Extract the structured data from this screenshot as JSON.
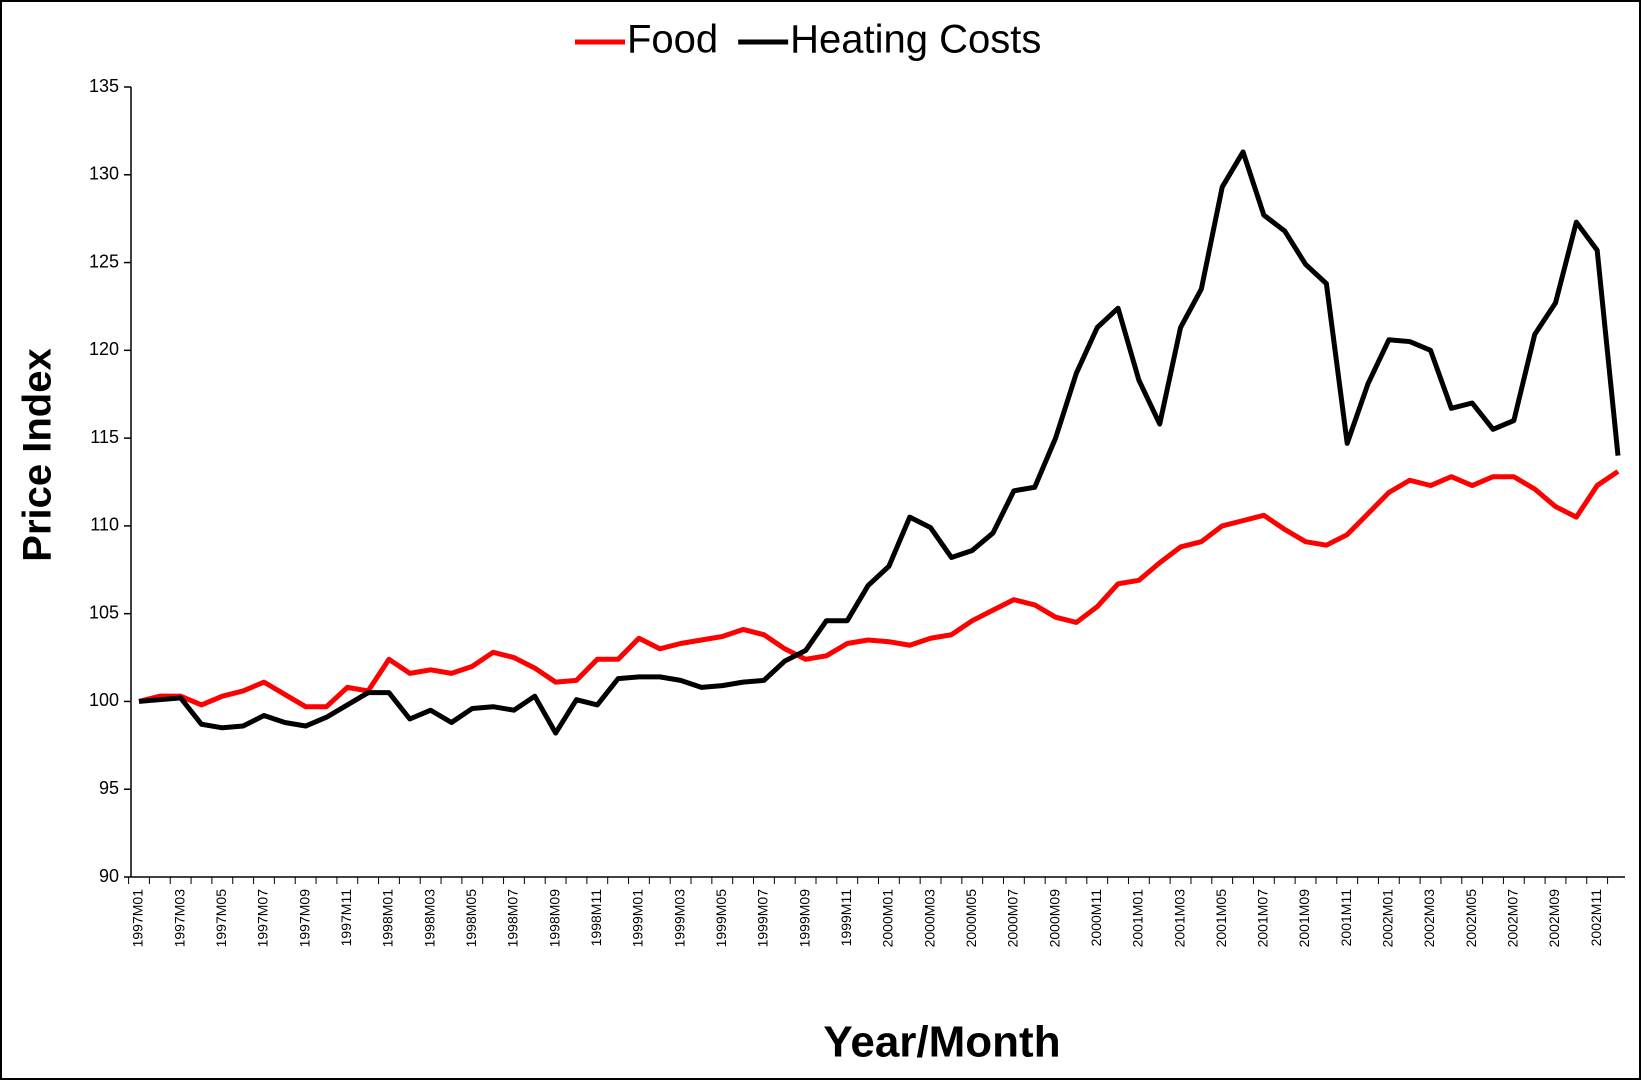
{
  "chart_data": {
    "type": "line",
    "legend": [
      "Food",
      "Heating Costs"
    ],
    "ylabel": "Price Index",
    "xlabel": "Year/Month",
    "categories": [
      "1997M01",
      null,
      "1997M03",
      null,
      "1997M05",
      null,
      "1997M07",
      null,
      "1997M09",
      null,
      "1997M11",
      null,
      "1998M01",
      null,
      "1998M03",
      null,
      "1998M05",
      null,
      "1998M07",
      null,
      "1998M09",
      null,
      "1998M11",
      null,
      "1999M01",
      null,
      "1999M03",
      null,
      "1999M05",
      null,
      "1999M07",
      null,
      "1999M09",
      null,
      "1999M11",
      null,
      "2000M01",
      null,
      "2000M03",
      null,
      "2000M05",
      null,
      "2000M07",
      null,
      "2000M09",
      null,
      "2000M11",
      null,
      "2001M01",
      null,
      "2001M03",
      null,
      "2001M05",
      null,
      "2001M07",
      null,
      "2001M09",
      null,
      "2001M11",
      null,
      "2002M01",
      null,
      "2002M03",
      null,
      "2002M05",
      null,
      "2002M07",
      null,
      "2002M09",
      null,
      "2002M11",
      null
    ],
    "series": [
      {
        "name": "Food",
        "color": "#ff0000",
        "values": [
          100.0,
          100.3,
          100.3,
          99.8,
          100.3,
          100.6,
          101.1,
          100.4,
          99.7,
          99.7,
          100.8,
          100.6,
          102.4,
          101.6,
          101.8,
          101.6,
          102.0,
          102.8,
          102.5,
          101.9,
          101.1,
          101.2,
          102.4,
          102.4,
          103.6,
          103.0,
          103.3,
          103.5,
          103.7,
          104.1,
          103.8,
          103.0,
          102.4,
          102.6,
          103.3,
          103.5,
          103.4,
          103.2,
          103.6,
          103.8,
          104.6,
          105.2,
          105.8,
          105.5,
          104.8,
          104.5,
          105.4,
          106.7,
          106.9,
          107.9,
          108.8,
          109.1,
          110.0,
          110.3,
          110.6,
          109.8,
          109.1,
          108.9,
          109.5,
          110.7,
          111.9,
          112.6,
          112.3,
          112.8,
          112.3,
          112.8,
          112.8,
          112.1,
          111.1,
          110.5,
          112.3,
          113.1
        ]
      },
      {
        "name": "Heating Costs",
        "color": "#000000",
        "values": [
          100.0,
          100.1,
          100.2,
          98.7,
          98.5,
          98.6,
          99.2,
          98.8,
          98.6,
          99.1,
          99.8,
          100.5,
          100.5,
          99.0,
          99.5,
          98.8,
          99.6,
          99.7,
          99.5,
          100.3,
          98.2,
          100.1,
          99.8,
          101.3,
          101.4,
          101.4,
          101.2,
          100.8,
          100.9,
          101.1,
          101.2,
          102.3,
          102.9,
          104.6,
          104.6,
          106.6,
          107.7,
          110.5,
          109.9,
          108.2,
          108.6,
          109.6,
          112.0,
          112.2,
          115.0,
          118.7,
          121.3,
          122.4,
          118.3,
          115.8,
          121.3,
          123.5,
          129.3,
          131.3,
          127.7,
          126.8,
          124.9,
          123.8,
          114.7,
          118.1,
          120.6,
          120.5,
          120.0,
          116.7,
          117.0,
          115.5,
          116.0,
          120.9,
          122.7,
          127.3,
          125.7,
          114.0
        ]
      }
    ],
    "ylim": [
      90,
      135
    ],
    "yticks": [
      90,
      95,
      100,
      105,
      110,
      115,
      120,
      125,
      130,
      135
    ],
    "legend_position": "top",
    "grid": false
  }
}
